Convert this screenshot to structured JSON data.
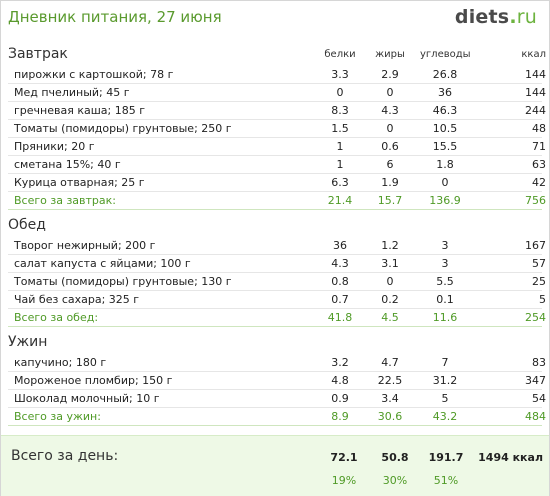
{
  "header": {
    "title": "Дневник питания, 27 июня",
    "logo_main": "diets",
    "logo_dot": ".",
    "logo_tld": "ru"
  },
  "columns": {
    "protein": "белки",
    "fat": "жиры",
    "carbs": "углеводы",
    "kcal": "ккал"
  },
  "sections": [
    {
      "title": "Завтрак",
      "items": [
        {
          "name": "пирожки с картошкой; 78 г",
          "protein": "3.3",
          "fat": "2.9",
          "carbs": "26.8",
          "kcal": "144"
        },
        {
          "name": "Мед пчелиный; 45 г",
          "protein": "0",
          "fat": "0",
          "carbs": "36",
          "kcal": "144"
        },
        {
          "name": "гречневая каша; 185 г",
          "protein": "8.3",
          "fat": "4.3",
          "carbs": "46.3",
          "kcal": "244"
        },
        {
          "name": "Томаты (помидоры) грунтовые; 250 г",
          "protein": "1.5",
          "fat": "0",
          "carbs": "10.5",
          "kcal": "48"
        },
        {
          "name": "Пряники; 20 г",
          "protein": "1",
          "fat": "0.6",
          "carbs": "15.5",
          "kcal": "71"
        },
        {
          "name": "сметана 15%; 40 г",
          "protein": "1",
          "fat": "6",
          "carbs": "1.8",
          "kcal": "63"
        },
        {
          "name": "Курица отварная; 25 г",
          "protein": "6.3",
          "fat": "1.9",
          "carbs": "0",
          "kcal": "42"
        }
      ],
      "total": {
        "name": "Всего за завтрак:",
        "protein": "21.4",
        "fat": "15.7",
        "carbs": "136.9",
        "kcal": "756"
      }
    },
    {
      "title": "Обед",
      "items": [
        {
          "name": "Творог нежирный; 200 г",
          "protein": "36",
          "fat": "1.2",
          "carbs": "3",
          "kcal": "167"
        },
        {
          "name": "салат капуста с яйцами; 100 г",
          "protein": "4.3",
          "fat": "3.1",
          "carbs": "3",
          "kcal": "57"
        },
        {
          "name": "Томаты (помидоры) грунтовые; 130 г",
          "protein": "0.8",
          "fat": "0",
          "carbs": "5.5",
          "kcal": "25"
        },
        {
          "name": "Чай без сахара; 325 г",
          "protein": "0.7",
          "fat": "0.2",
          "carbs": "0.1",
          "kcal": "5"
        }
      ],
      "total": {
        "name": "Всего за обед:",
        "protein": "41.8",
        "fat": "4.5",
        "carbs": "11.6",
        "kcal": "254"
      }
    },
    {
      "title": "Ужин",
      "items": [
        {
          "name": "капучино; 180 г",
          "protein": "3.2",
          "fat": "4.7",
          "carbs": "7",
          "kcal": "83"
        },
        {
          "name": "Мороженое пломбир; 150 г",
          "protein": "4.8",
          "fat": "22.5",
          "carbs": "31.2",
          "kcal": "347"
        },
        {
          "name": "Шоколад молочный; 10 г",
          "protein": "0.9",
          "fat": "3.4",
          "carbs": "5",
          "kcal": "54"
        }
      ],
      "total": {
        "name": "Всего за ужин:",
        "protein": "8.9",
        "fat": "30.6",
        "carbs": "43.2",
        "kcal": "484"
      }
    }
  ],
  "day_total": {
    "label": "Всего за день:",
    "protein": "72.1",
    "fat": "50.8",
    "carbs": "191.7",
    "kcal": "1494 ккал",
    "protein_pct": "19%",
    "fat_pct": "30%",
    "carbs_pct": "51%"
  },
  "colors": {
    "accent": "#5a9a2e",
    "total_text": "#4f9a26",
    "day_bg": "#eef9e6"
  }
}
